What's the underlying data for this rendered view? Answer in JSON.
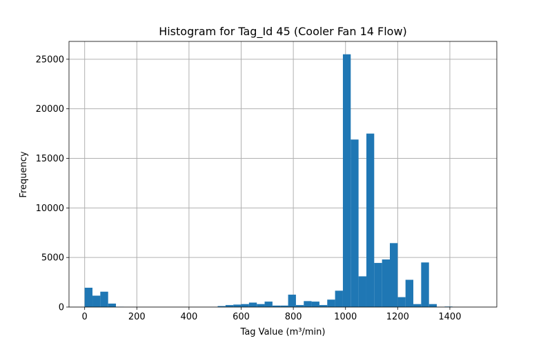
{
  "chart_data": {
    "type": "bar",
    "title": "Histogram for Tag_Id 45 (Cooler Fan 14 Flow)",
    "xlabel": "Tag Value (m³/min)",
    "ylabel": "Frequency",
    "xlim": [
      -60,
      1580
    ],
    "ylim": [
      0,
      26800
    ],
    "xticks": [
      0,
      200,
      400,
      600,
      800,
      1000,
      1200,
      1400
    ],
    "yticks": [
      0,
      5000,
      10000,
      15000,
      20000,
      25000
    ],
    "grid": true,
    "bar_color": "#1f77b4",
    "bin_width": 30,
    "bins": [
      {
        "x0": 0,
        "value": 1950
      },
      {
        "x0": 30,
        "value": 1150
      },
      {
        "x0": 60,
        "value": 1550
      },
      {
        "x0": 90,
        "value": 350
      },
      {
        "x0": 120,
        "value": 30
      },
      {
        "x0": 510,
        "value": 100
      },
      {
        "x0": 540,
        "value": 200
      },
      {
        "x0": 570,
        "value": 250
      },
      {
        "x0": 600,
        "value": 300
      },
      {
        "x0": 630,
        "value": 450
      },
      {
        "x0": 660,
        "value": 300
      },
      {
        "x0": 690,
        "value": 550
      },
      {
        "x0": 720,
        "value": 150
      },
      {
        "x0": 750,
        "value": 150
      },
      {
        "x0": 780,
        "value": 1250
      },
      {
        "x0": 810,
        "value": 200
      },
      {
        "x0": 840,
        "value": 600
      },
      {
        "x0": 870,
        "value": 550
      },
      {
        "x0": 900,
        "value": 200
      },
      {
        "x0": 930,
        "value": 750
      },
      {
        "x0": 960,
        "value": 1650
      },
      {
        "x0": 990,
        "value": 25500
      },
      {
        "x0": 1020,
        "value": 16900
      },
      {
        "x0": 1050,
        "value": 3100
      },
      {
        "x0": 1080,
        "value": 17500
      },
      {
        "x0": 1110,
        "value": 4450
      },
      {
        "x0": 1140,
        "value": 4800
      },
      {
        "x0": 1170,
        "value": 6450
      },
      {
        "x0": 1200,
        "value": 1000
      },
      {
        "x0": 1230,
        "value": 2750
      },
      {
        "x0": 1260,
        "value": 300
      },
      {
        "x0": 1290,
        "value": 4500
      },
      {
        "x0": 1320,
        "value": 300
      },
      {
        "x0": 1380,
        "value": 50
      }
    ]
  }
}
